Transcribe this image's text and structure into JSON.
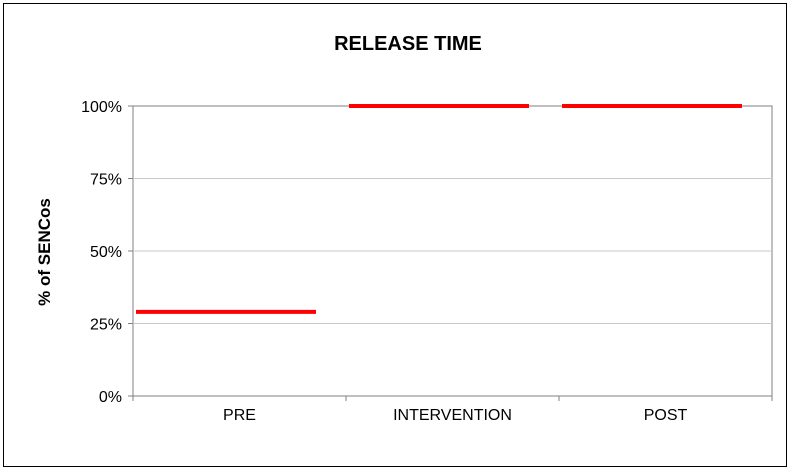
{
  "chart_data": {
    "type": "line",
    "title": "RELEASE TIME",
    "xlabel": "",
    "ylabel": "% of SENCos",
    "categories": [
      "PRE",
      "INTERVENTION",
      "POST"
    ],
    "y_tick_labels": [
      "0%",
      "25%",
      "50%",
      "75%",
      "100%"
    ],
    "ylim": [
      0,
      100
    ],
    "y_ticks": [
      0,
      25,
      50,
      75,
      100
    ],
    "grid": true,
    "legend": "none",
    "series": [
      {
        "values": [
          29,
          100,
          100
        ],
        "color": "#ff0000"
      }
    ]
  }
}
